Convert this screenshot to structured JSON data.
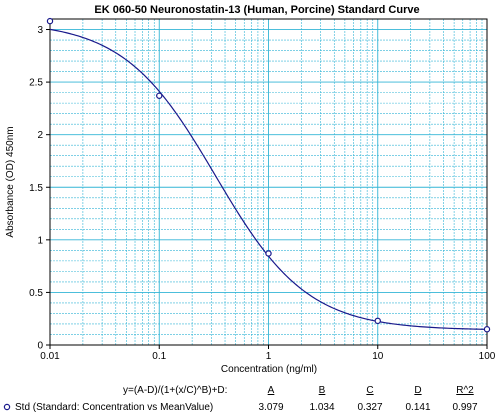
{
  "chart_data": {
    "type": "scatter",
    "title": "EK 060-50 Neuronostatin-13 (Human, Porcine) Standard Curve",
    "xlabel": "Concentration (ng/ml)",
    "ylabel": "Absorbance (OD) 450nm",
    "x_scale": "log",
    "xlim": [
      0.01,
      100
    ],
    "ylim": [
      0,
      3.1
    ],
    "x_ticks": [
      "0.01",
      "0.1",
      "1",
      "10",
      "100"
    ],
    "y_ticks": [
      "0",
      "0.5",
      "1",
      "1.5",
      "2",
      "2.5",
      "3"
    ],
    "grid": true,
    "series": [
      {
        "name": "Std (Standard: Concentration vs MeanValue)",
        "x": [
          0.01,
          0.1,
          1,
          10,
          100
        ],
        "y": [
          3.08,
          2.37,
          0.87,
          0.23,
          0.15
        ]
      }
    ],
    "fit": {
      "equation": "y=(A-D)/(1+(x/C)^B)+D:",
      "headers": [
        "A",
        "B",
        "C",
        "D",
        "R^2"
      ],
      "values": [
        "3.079",
        "1.034",
        "0.327",
        "0.141",
        "0.997"
      ],
      "A": 3.079,
      "B": 1.034,
      "C": 0.327,
      "D": 0.141
    },
    "colors": {
      "grid": "#33b5d6",
      "curve": "#1a1a8c",
      "marker": "#1a1a8c",
      "axis": "#000000"
    }
  }
}
